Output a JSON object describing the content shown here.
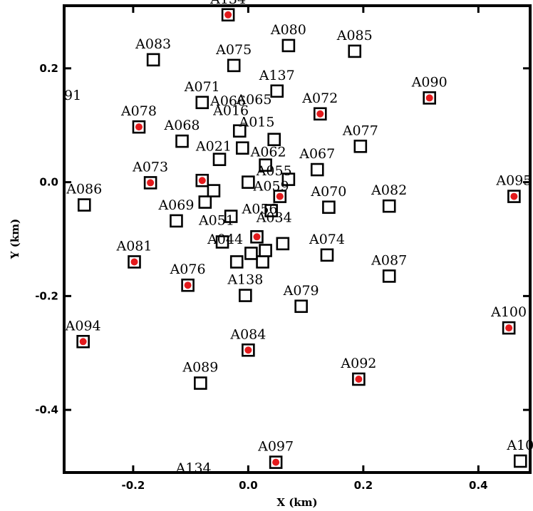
{
  "chart_data": {
    "type": "scatter",
    "title": "",
    "xlabel": "X (km)",
    "ylabel": "Y (km)",
    "xlim": [
      -0.32,
      0.49
    ],
    "ylim": [
      -0.51,
      0.31
    ],
    "x_ticks": [
      -0.2,
      0.0,
      0.2,
      0.4
    ],
    "x_tick_labels": [
      "-0.2",
      "0.0",
      "0.2",
      "0.4"
    ],
    "y_ticks": [
      -0.4,
      -0.2,
      0.0,
      0.2
    ],
    "y_tick_labels": [
      "-0.4",
      "-0.2",
      "0.0",
      "0.2"
    ],
    "grid": false,
    "marker_color": "#e31a1c",
    "points": [
      {
        "label": "A083",
        "x": -0.165,
        "y": 0.215,
        "marked": false
      },
      {
        "label": "A075",
        "x": -0.025,
        "y": 0.205,
        "marked": false
      },
      {
        "label": "A080",
        "x": 0.07,
        "y": 0.24,
        "marked": false
      },
      {
        "label": "A085",
        "x": 0.185,
        "y": 0.23,
        "marked": false
      },
      {
        "label": "A137",
        "x": 0.05,
        "y": 0.16,
        "marked": false
      },
      {
        "label": "A071",
        "x": -0.08,
        "y": 0.14,
        "marked": false
      },
      {
        "label": "A078",
        "x": -0.19,
        "y": 0.097,
        "marked": true
      },
      {
        "label": "A072",
        "x": 0.125,
        "y": 0.12,
        "marked": true
      },
      {
        "label": "A090",
        "x": 0.315,
        "y": 0.148,
        "marked": true
      },
      {
        "label": "A068",
        "x": -0.115,
        "y": 0.072,
        "marked": false
      },
      {
        "label": "A077",
        "x": 0.195,
        "y": 0.063,
        "marked": false
      },
      {
        "label": "A067",
        "x": 0.12,
        "y": 0.022,
        "marked": false
      },
      {
        "label": "A073",
        "x": -0.17,
        "y": -0.001,
        "marked": true
      },
      {
        "label": "A086",
        "x": -0.285,
        "y": -0.04,
        "marked": false
      },
      {
        "label": "A069",
        "x": -0.125,
        "y": -0.068,
        "marked": false
      },
      {
        "label": "A070",
        "x": 0.14,
        "y": -0.044,
        "marked": false
      },
      {
        "label": "A082",
        "x": 0.245,
        "y": -0.042,
        "marked": false
      },
      {
        "label": "A095",
        "x": 0.462,
        "y": -0.025,
        "marked": true
      },
      {
        "label": "A074",
        "x": 0.137,
        "y": -0.128,
        "marked": false
      },
      {
        "label": "A081",
        "x": -0.198,
        "y": -0.14,
        "marked": true
      },
      {
        "label": "A087",
        "x": 0.245,
        "y": -0.165,
        "marked": false
      },
      {
        "label": "A076",
        "x": -0.105,
        "y": -0.181,
        "marked": true
      },
      {
        "label": "A138",
        "x": -0.005,
        "y": -0.199,
        "marked": false
      },
      {
        "label": "A079",
        "x": 0.092,
        "y": -0.218,
        "marked": false
      },
      {
        "label": "A100",
        "x": 0.453,
        "y": -0.256,
        "marked": true
      },
      {
        "label": "A094",
        "x": -0.287,
        "y": -0.28,
        "marked": true
      },
      {
        "label": "A084",
        "x": 0.0,
        "y": -0.295,
        "marked": true
      },
      {
        "label": "A089",
        "x": -0.083,
        "y": -0.353,
        "marked": false
      },
      {
        "label": "A092",
        "x": 0.192,
        "y": -0.346,
        "marked": true
      },
      {
        "label": "A097",
        "x": 0.048,
        "y": -0.492,
        "marked": true
      },
      {
        "label": "A10",
        "x": 0.473,
        "y": -0.49,
        "marked": false
      },
      {
        "label": "A134",
        "x": -0.035,
        "y": 0.294,
        "marked": true
      }
    ],
    "cluster_labels": [
      {
        "text": "91",
        "x": -0.305,
        "y": 0.145
      },
      {
        "text": "A066",
        "x": -0.035,
        "y": 0.135
      },
      {
        "text": "A065",
        "x": 0.01,
        "y": 0.137
      },
      {
        "text": "A016",
        "x": -0.03,
        "y": 0.118
      },
      {
        "text": "A015",
        "x": 0.015,
        "y": 0.098
      },
      {
        "text": "A021",
        "x": -0.06,
        "y": 0.055
      },
      {
        "text": "A062",
        "x": 0.035,
        "y": 0.045
      },
      {
        "text": "A055",
        "x": 0.045,
        "y": 0.012
      },
      {
        "text": "A059",
        "x": 0.04,
        "y": -0.015
      },
      {
        "text": "A056",
        "x": 0.02,
        "y": -0.055
      },
      {
        "text": "A034",
        "x": 0.045,
        "y": -0.07
      },
      {
        "text": "A051",
        "x": -0.055,
        "y": -0.075
      },
      {
        "text": "A044",
        "x": -0.04,
        "y": -0.108
      },
      {
        "text": "A134",
        "x": -0.095,
        "y": -0.51
      }
    ],
    "cluster_points": [
      {
        "x": -0.08,
        "y": 0.003,
        "marked": true
      },
      {
        "x": 0.055,
        "y": -0.025,
        "marked": true
      },
      {
        "x": 0.015,
        "y": -0.096,
        "marked": true
      },
      {
        "x": -0.075,
        "y": -0.035,
        "marked": false
      },
      {
        "x": -0.045,
        "y": -0.105,
        "marked": false
      },
      {
        "x": -0.02,
        "y": -0.14,
        "marked": false
      },
      {
        "x": 0.025,
        "y": -0.14,
        "marked": false
      },
      {
        "x": 0.03,
        "y": -0.12,
        "marked": false
      },
      {
        "x": 0.06,
        "y": -0.108,
        "marked": false
      },
      {
        "x": 0.005,
        "y": -0.125,
        "marked": false
      },
      {
        "x": -0.05,
        "y": 0.04,
        "marked": false
      },
      {
        "x": -0.01,
        "y": 0.06,
        "marked": false
      },
      {
        "x": 0.03,
        "y": 0.03,
        "marked": false
      },
      {
        "x": 0.07,
        "y": 0.005,
        "marked": false
      },
      {
        "x": -0.06,
        "y": -0.015,
        "marked": false
      },
      {
        "x": 0.0,
        "y": 0.0,
        "marked": false
      },
      {
        "x": 0.04,
        "y": -0.05,
        "marked": false
      },
      {
        "x": -0.03,
        "y": -0.06,
        "marked": false
      },
      {
        "x": -0.015,
        "y": 0.09,
        "marked": false
      },
      {
        "x": 0.045,
        "y": 0.075,
        "marked": false
      }
    ]
  }
}
